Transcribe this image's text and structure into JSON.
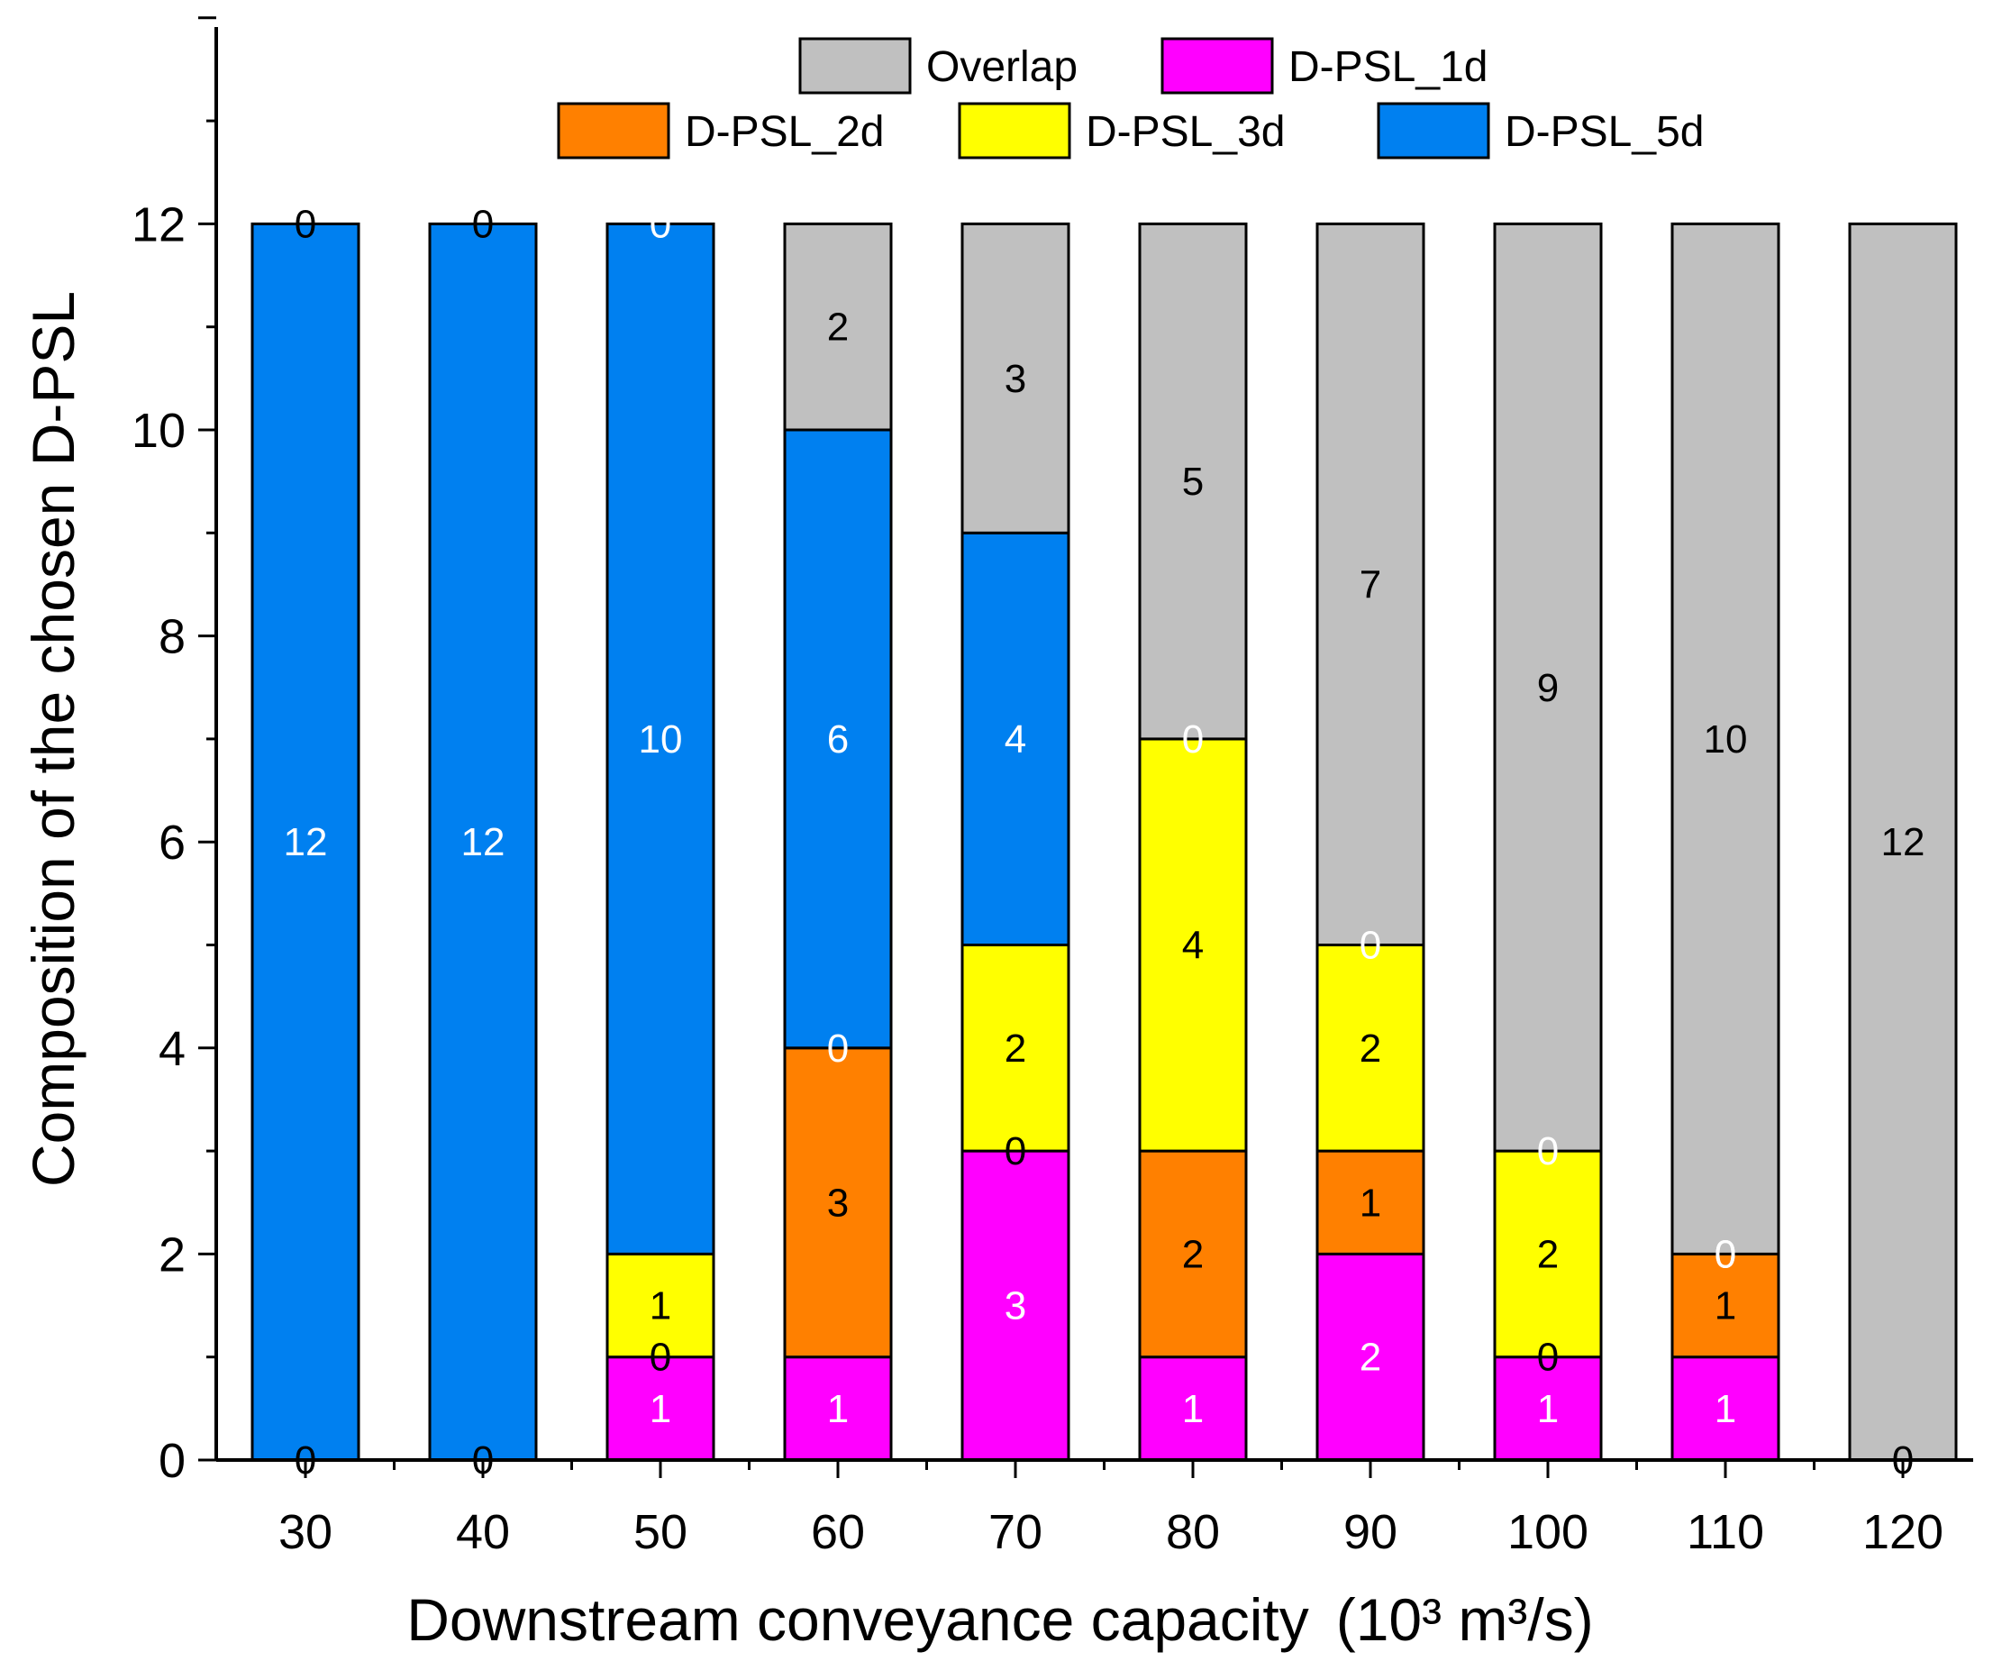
{
  "chart_data": {
    "type": "stacked-bar",
    "title": "",
    "xlabel": "Downstream conveyance capacity",
    "xlabel_unit": "(10³ m³/s)",
    "ylabel": "Composition of the chosen D-PSL",
    "ylim": [
      0,
      14
    ],
    "yticks": [
      0,
      2,
      4,
      6,
      8,
      10,
      12
    ],
    "grid": false,
    "legend_position": "top",
    "categories": [
      "30",
      "40",
      "50",
      "60",
      "70",
      "80",
      "90",
      "100",
      "110",
      "120"
    ],
    "series": [
      {
        "name": "D-PSL_1d",
        "color": "#ff00ff",
        "label_color": "#ffffff",
        "values": [
          0,
          0,
          1,
          1,
          3,
          1,
          2,
          1,
          1,
          0
        ]
      },
      {
        "name": "D-PSL_2d",
        "color": "#ff8000",
        "label_color": "#000000",
        "values": [
          0,
          0,
          0,
          3,
          0,
          2,
          1,
          0,
          1,
          0
        ]
      },
      {
        "name": "D-PSL_3d",
        "color": "#ffff00",
        "label_color": "#000000",
        "values": [
          0,
          0,
          1,
          0,
          2,
          4,
          2,
          2,
          0,
          0
        ]
      },
      {
        "name": "D-PSL_5d",
        "color": "#0080f0",
        "label_color": "#ffffff",
        "values": [
          12,
          12,
          10,
          6,
          4,
          0,
          0,
          0,
          0,
          0
        ]
      },
      {
        "name": "Overlap",
        "color": "#c0c0c0",
        "label_color": "#000000",
        "values": [
          0,
          0,
          0,
          2,
          3,
          5,
          7,
          9,
          10,
          12
        ]
      }
    ],
    "legend_order": [
      [
        "Overlap",
        "D-PSL_1d"
      ],
      [
        "D-PSL_2d",
        "D-PSL_3d",
        "D-PSL_5d"
      ]
    ]
  }
}
